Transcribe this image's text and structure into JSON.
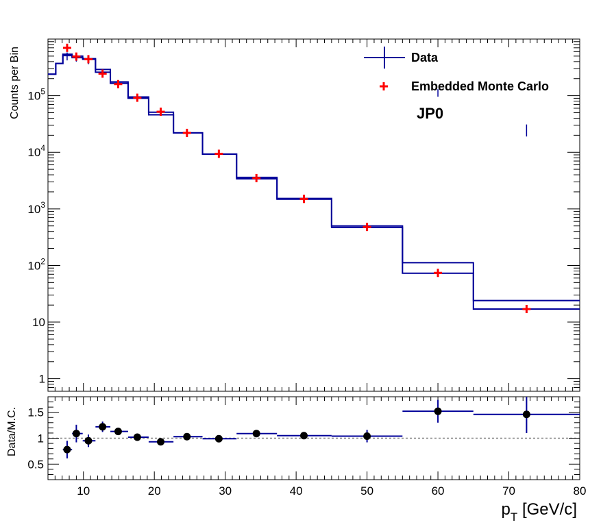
{
  "colors": {
    "data": "#000099",
    "mc": "#ff0000",
    "ratio": "#000000",
    "ref": "#808080",
    "frame": "#000000"
  },
  "chart_data": [
    {
      "type": "histogram",
      "panel": "top",
      "ylabel": "Counts per Bin",
      "yscale": "log",
      "ylim": [
        0.6,
        1000000
      ],
      "xlim": [
        5,
        80
      ],
      "ytick_labels": [
        {
          "v": 1,
          "base": "1",
          "exp": ""
        },
        {
          "v": 10,
          "base": "10",
          "exp": ""
        },
        {
          "v": 100,
          "base": "10",
          "exp": "2"
        },
        {
          "v": 1000,
          "base": "10",
          "exp": "3"
        },
        {
          "v": 10000,
          "base": "10",
          "exp": "4"
        },
        {
          "v": 100000,
          "base": "10",
          "exp": "5"
        }
      ],
      "bin_edges": [
        5,
        6.1,
        7.1,
        8.4,
        9.9,
        11.7,
        13.8,
        16.3,
        19.2,
        22.7,
        26.8,
        31.6,
        37.3,
        45,
        55,
        65,
        80
      ],
      "series": [
        {
          "name": "Data",
          "style": "hist",
          "values": [
            240000,
            370000,
            510000,
            500000,
            450000,
            290000,
            175000,
            95000,
            46000,
            22000,
            9300,
            3400,
            1480,
            470,
            112,
            24
          ]
        },
        {
          "name": "Embedded Monte Carlo",
          "style": "hist",
          "values": [
            240000,
            370000,
            540000,
            470000,
            440000,
            260000,
            165000,
            90000,
            51000,
            22000,
            9300,
            3600,
            1530,
            500,
            73,
            17
          ]
        },
        {
          "name": "Embedded Monte Carlo",
          "style": "markers",
          "x": [
            7.7,
            9.0,
            10.7,
            12.7,
            14.9,
            17.6,
            20.9,
            24.6,
            29.1,
            34.4,
            41.1,
            50.0,
            60.0,
            72.5
          ],
          "y": [
            700000,
            490000,
            440000,
            245000,
            160000,
            92000,
            52000,
            22000,
            9400,
            3500,
            1500,
            480,
            74,
            17
          ]
        }
      ],
      "data_errorbars": {
        "x": [
          7.7,
          9.0,
          10.7,
          60.0,
          72.5
        ],
        "lo": [
          420000,
          400000,
          360000,
          96000,
          19000
        ],
        "hi": [
          580000,
          560000,
          520000,
          130000,
          31000
        ]
      },
      "legend": {
        "position": "top-right",
        "entries": [
          {
            "label": "Data",
            "marker": "errorbar-line"
          },
          {
            "label": "Embedded Monte Carlo",
            "marker": "cross"
          }
        ],
        "annotation": "JP0"
      }
    },
    {
      "type": "scatter",
      "panel": "bottom",
      "ylabel": "Data/M.C.",
      "xlabel_main": "p",
      "xlabel_sub": "T",
      "xlabel_rest": " [GeV/c]",
      "xlim": [
        5,
        80
      ],
      "ylim": [
        0.2,
        1.8
      ],
      "yticks": [
        0.5,
        1,
        1.5
      ],
      "ytick_labels": [
        "0.5",
        "1",
        "1.5"
      ],
      "xticks": [
        10,
        20,
        30,
        40,
        50,
        60,
        70,
        80
      ],
      "xtick_labels": [
        "10",
        "20",
        "30",
        "40",
        "50",
        "60",
        "70",
        "80"
      ],
      "reference_line": 1,
      "points": [
        {
          "x": 7.7,
          "y": 0.78,
          "xlo": 7.1,
          "xhi": 8.4,
          "err": 0.17
        },
        {
          "x": 9.0,
          "y": 1.09,
          "xlo": 8.4,
          "xhi": 9.9,
          "err": 0.17
        },
        {
          "x": 10.7,
          "y": 0.95,
          "xlo": 9.9,
          "xhi": 11.7,
          "err": 0.12
        },
        {
          "x": 12.7,
          "y": 1.22,
          "xlo": 11.7,
          "xhi": 13.8,
          "err": 0.1
        },
        {
          "x": 14.9,
          "y": 1.13,
          "xlo": 13.8,
          "xhi": 16.3,
          "err": 0.07
        },
        {
          "x": 17.6,
          "y": 1.02,
          "xlo": 16.3,
          "xhi": 19.2,
          "err": 0.04
        },
        {
          "x": 20.9,
          "y": 0.93,
          "xlo": 19.2,
          "xhi": 22.7,
          "err": 0.03
        },
        {
          "x": 24.6,
          "y": 1.03,
          "xlo": 22.7,
          "xhi": 26.8,
          "err": 0.03
        },
        {
          "x": 29.1,
          "y": 0.99,
          "xlo": 26.8,
          "xhi": 31.6,
          "err": 0.03
        },
        {
          "x": 34.4,
          "y": 1.09,
          "xlo": 31.6,
          "xhi": 37.3,
          "err": 0.03
        },
        {
          "x": 41.1,
          "y": 1.05,
          "xlo": 37.3,
          "xhi": 45,
          "err": 0.06
        },
        {
          "x": 50.0,
          "y": 1.04,
          "xlo": 45,
          "xhi": 55,
          "err": 0.12
        },
        {
          "x": 60.0,
          "y": 1.52,
          "xlo": 55,
          "xhi": 65,
          "err": 0.22
        },
        {
          "x": 72.5,
          "y": 1.46,
          "xlo": 65,
          "xhi": 80,
          "err": 0.36
        }
      ]
    }
  ]
}
